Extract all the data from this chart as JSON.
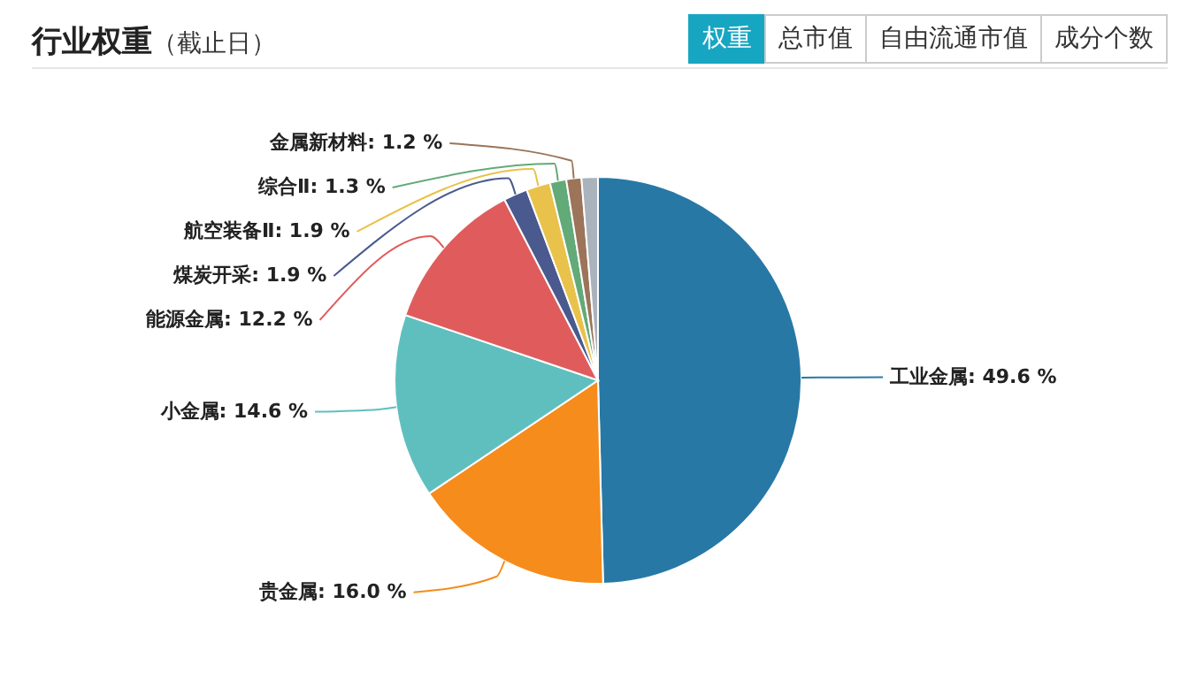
{
  "chart_data": {
    "type": "pie",
    "title": "行业权重",
    "subtitle": "（截止日）",
    "annotations": [
      "权重",
      "总市值",
      "自由流通市值",
      "成分个数"
    ],
    "categories": [
      "工业金属",
      "贵金属",
      "小金属",
      "能源金属",
      "煤炭开采",
      "航空装备Ⅱ",
      "综合Ⅱ",
      "金属新材料",
      null
    ],
    "values": [
      49.6,
      16.0,
      14.6,
      12.2,
      1.9,
      1.9,
      1.3,
      1.2,
      1.3
    ],
    "value_labels": [
      "49.6 %",
      "16.0 %",
      "14.6 %",
      "12.2 %",
      "1.9 %",
      "1.9 %",
      "1.3 %",
      "1.2 %",
      null
    ],
    "colors": [
      "#2878a6",
      "#f58c1c",
      "#5fbfbf",
      "#e05c5c",
      "#4a5a8e",
      "#e8c24a",
      "#62aa78",
      "#9b7459",
      "#aab2bc"
    ]
  }
}
